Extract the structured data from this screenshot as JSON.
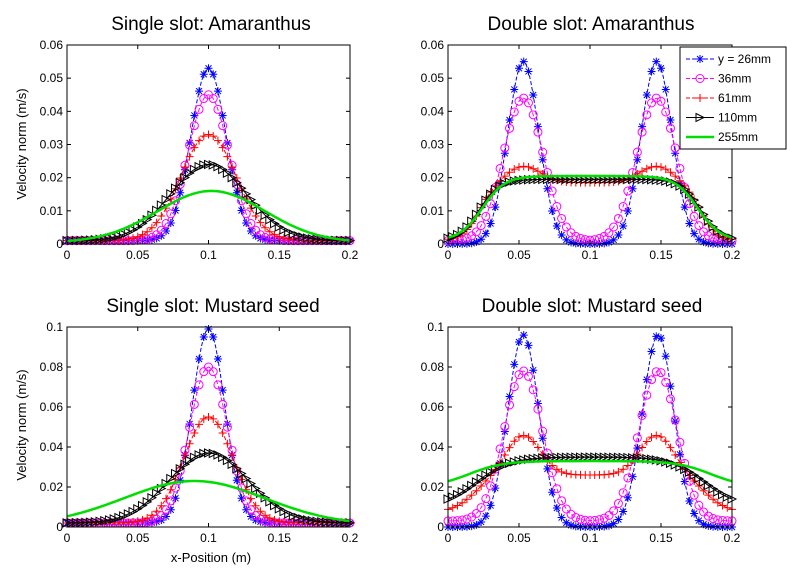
{
  "chart_data": [
    {
      "type": "line",
      "title": "Single slot: Amaranthus",
      "xlabel": "",
      "ylabel": "Velocity norm (m/s)",
      "xlim": [
        0,
        0.2
      ],
      "ylim": [
        0,
        0.06
      ],
      "xticks": [
        "0",
        "0.05",
        "0.1",
        "0.15",
        "0.2"
      ],
      "yticks": [
        "0",
        "0.01",
        "0.02",
        "0.03",
        "0.04",
        "0.05",
        "0.06"
      ],
      "series": [
        {
          "name": "y = 26mm",
          "color": "#0000ff",
          "marker": "asterisk",
          "shape": "single",
          "peak": 0.053,
          "centers": [
            0.1
          ],
          "width": 0.0125,
          "base": 0.001
        },
        {
          "name": "36mm",
          "color": "#ff00ff",
          "marker": "circle",
          "shape": "single",
          "peak": 0.045,
          "centers": [
            0.1
          ],
          "width": 0.0145,
          "base": 0.001
        },
        {
          "name": "61mm",
          "color": "#ff0000",
          "marker": "plus",
          "shape": "single",
          "peak": 0.033,
          "centers": [
            0.1
          ],
          "width": 0.0195,
          "base": 0.001
        },
        {
          "name": "110mm",
          "color": "#000000",
          "marker": "triangle",
          "shape": "single",
          "peak": 0.024,
          "centers": [
            0.1
          ],
          "width": 0.027,
          "base": 0.001
        },
        {
          "name": "255mm",
          "color": "#00dd00",
          "marker": "none",
          "shape": "single",
          "peak": 0.016,
          "centers": [
            0.102
          ],
          "width": 0.038,
          "base": 0.0005
        }
      ]
    },
    {
      "type": "line",
      "title": "Double slot: Amaranthus",
      "xlabel": "",
      "ylabel": "",
      "xlim": [
        0,
        0.2
      ],
      "ylim": [
        0,
        0.06
      ],
      "xticks": [
        "0",
        "0.05",
        "0.1",
        "0.15",
        "0.2"
      ],
      "yticks": [
        "0",
        "0.01",
        "0.02",
        "0.03",
        "0.04",
        "0.05",
        "0.06"
      ],
      "legend": "top-right",
      "series": [
        {
          "name": "y = 26mm",
          "color": "#0000ff",
          "marker": "asterisk",
          "shape": "double",
          "peak": 0.055,
          "centers": [
            0.053,
            0.147
          ],
          "width": 0.011,
          "base": 0.0
        },
        {
          "name": "36mm",
          "color": "#ff00ff",
          "marker": "circle",
          "shape": "double",
          "peak": 0.044,
          "centers": [
            0.053,
            0.147
          ],
          "width": 0.014,
          "base": 0.001
        },
        {
          "name": "61mm",
          "color": "#ff0000",
          "marker": "plus",
          "shape": "plateau",
          "plateau": 0.0185,
          "bumps": 0.005,
          "x0": 0.022,
          "x1": 0.178,
          "edge": 0.006,
          "base": 0.001
        },
        {
          "name": "110mm",
          "color": "#000000",
          "marker": "triangle",
          "shape": "plateau",
          "plateau": 0.0195,
          "bumps": 0.0,
          "x0": 0.022,
          "x1": 0.178,
          "edge": 0.007,
          "base": 0.001
        },
        {
          "name": "255mm",
          "color": "#00dd00",
          "marker": "none",
          "shape": "plateau",
          "plateau": 0.0205,
          "bumps": 0.0,
          "x0": 0.024,
          "x1": 0.176,
          "edge": 0.008,
          "base": 0.001
        }
      ]
    },
    {
      "type": "line",
      "title": "Single slot: Mustard seed",
      "xlabel": "x-Position (m)",
      "ylabel": "Velocity norm (m/s)",
      "xlim": [
        0,
        0.2
      ],
      "ylim": [
        0,
        0.1
      ],
      "xticks": [
        "0",
        "0.05",
        "0.1",
        "0.15",
        "0.2"
      ],
      "yticks": [
        "0",
        "0.02",
        "0.04",
        "0.06",
        "0.08",
        "0.1"
      ],
      "series": [
        {
          "name": "y = 26mm",
          "color": "#0000ff",
          "marker": "asterisk",
          "shape": "single",
          "peak": 0.099,
          "centers": [
            0.1
          ],
          "width": 0.0115,
          "base": 0.002
        },
        {
          "name": "36mm",
          "color": "#ff00ff",
          "marker": "circle",
          "shape": "single",
          "peak": 0.08,
          "centers": [
            0.1
          ],
          "width": 0.0135,
          "base": 0.002
        },
        {
          "name": "61mm",
          "color": "#ff0000",
          "marker": "plus",
          "shape": "single",
          "peak": 0.055,
          "centers": [
            0.1
          ],
          "width": 0.0175,
          "base": 0.002
        },
        {
          "name": "110mm",
          "color": "#000000",
          "marker": "triangle",
          "shape": "single",
          "peak": 0.037,
          "centers": [
            0.1
          ],
          "width": 0.028,
          "base": 0.002
        },
        {
          "name": "255mm",
          "color": "#00dd00",
          "marker": "none",
          "shape": "single",
          "peak": 0.023,
          "centers": [
            0.09
          ],
          "width": 0.05,
          "base": 0.001
        }
      ]
    },
    {
      "type": "line",
      "title": "Double slot: Mustard seed",
      "xlabel": "",
      "ylabel": "",
      "xlim": [
        0,
        0.2
      ],
      "ylim": [
        0,
        0.1
      ],
      "xticks": [
        "0",
        "0.05",
        "0.1",
        "0.15",
        "0.2"
      ],
      "yticks": [
        "0",
        "0.02",
        "0.04",
        "0.06",
        "0.08",
        "0.1"
      ],
      "series": [
        {
          "name": "y = 26mm",
          "color": "#0000ff",
          "marker": "asterisk",
          "shape": "double",
          "peak": 0.096,
          "centers": [
            0.053,
            0.148
          ],
          "width": 0.011,
          "base": 0.0
        },
        {
          "name": "36mm",
          "color": "#ff00ff",
          "marker": "circle",
          "shape": "double",
          "peak": 0.078,
          "centers": [
            0.053,
            0.148
          ],
          "width": 0.0135,
          "base": 0.003
        },
        {
          "name": "61mm",
          "color": "#ff0000",
          "marker": "plus",
          "shape": "plateau",
          "plateau": 0.026,
          "bumps": 0.02,
          "x0": 0.018,
          "x1": 0.182,
          "edge": 0.008,
          "base": 0.007
        },
        {
          "name": "110mm",
          "color": "#000000",
          "marker": "triangle",
          "shape": "plateau",
          "plateau": 0.035,
          "bumps": 0.0,
          "x0": 0.02,
          "x1": 0.18,
          "edge": 0.012,
          "base": 0.01
        },
        {
          "name": "255mm",
          "color": "#00dd00",
          "marker": "none",
          "shape": "plateau",
          "plateau": 0.033,
          "bumps": 0.0,
          "x0": 0.015,
          "x1": 0.185,
          "edge": 0.012,
          "base": 0.02
        }
      ]
    }
  ]
}
